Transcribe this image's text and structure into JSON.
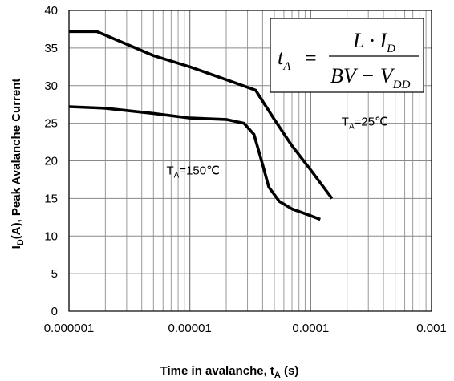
{
  "chart_data": {
    "type": "line",
    "xscale": "log",
    "xlim": [
      1e-06,
      0.001
    ],
    "ylim": [
      0,
      40
    ],
    "grid": true,
    "xlabel": {
      "main": "Time in avalanche, t",
      "sub": "A",
      "unit": " (s)"
    },
    "ylabel": {
      "main": "I",
      "sub": "D",
      "rest": "(A), Peak Avalanche Current"
    },
    "x_ticks": [
      {
        "value": 1e-06,
        "label": "0.000001"
      },
      {
        "value": 1e-05,
        "label": "0.00001"
      },
      {
        "value": 0.0001,
        "label": "0.0001"
      },
      {
        "value": 0.001,
        "label": "0.001"
      }
    ],
    "y_ticks": [
      {
        "value": 0,
        "label": "0"
      },
      {
        "value": 5,
        "label": "5"
      },
      {
        "value": 10,
        "label": "10"
      },
      {
        "value": 15,
        "label": "15"
      },
      {
        "value": 20,
        "label": "20"
      },
      {
        "value": 25,
        "label": "25"
      },
      {
        "value": 30,
        "label": "30"
      },
      {
        "value": 35,
        "label": "35"
      },
      {
        "value": 40,
        "label": "40"
      }
    ],
    "series": [
      {
        "label_main": "T",
        "label_sub": "A",
        "label_rest": "=25℃",
        "label_at": {
          "x": 0.00018,
          "y": 24.7
        },
        "points": [
          {
            "x": 1e-06,
            "y": 37.2
          },
          {
            "x": 1.7e-06,
            "y": 37.2
          },
          {
            "x": 5e-06,
            "y": 34.0
          },
          {
            "x": 1e-05,
            "y": 32.5
          },
          {
            "x": 2e-05,
            "y": 30.8
          },
          {
            "x": 3.5e-05,
            "y": 29.4
          },
          {
            "x": 5e-05,
            "y": 25.5
          },
          {
            "x": 7e-05,
            "y": 22.0
          },
          {
            "x": 0.0001,
            "y": 18.8
          },
          {
            "x": 0.00015,
            "y": 15.0
          }
        ]
      },
      {
        "label_main": "T",
        "label_sub": "A",
        "label_rest": "=150℃",
        "label_at": {
          "x": 6.4e-06,
          "y": 18.2
        },
        "points": [
          {
            "x": 1e-06,
            "y": 27.2
          },
          {
            "x": 2e-06,
            "y": 27.0
          },
          {
            "x": 5e-06,
            "y": 26.3
          },
          {
            "x": 1e-05,
            "y": 25.7
          },
          {
            "x": 2e-05,
            "y": 25.5
          },
          {
            "x": 2.8e-05,
            "y": 25.0
          },
          {
            "x": 3.4e-05,
            "y": 23.5
          },
          {
            "x": 4e-05,
            "y": 19.5
          },
          {
            "x": 4.5e-05,
            "y": 16.5
          },
          {
            "x": 5.5e-05,
            "y": 14.6
          },
          {
            "x": 7e-05,
            "y": 13.6
          },
          {
            "x": 0.0001,
            "y": 12.7
          },
          {
            "x": 0.00012,
            "y": 12.2
          }
        ]
      }
    ],
    "formula": {
      "lhs_main": "t",
      "lhs_sub": "A",
      "equals": "=",
      "num_main": "L · I",
      "num_sub": "D",
      "den_main": "BV − V",
      "den_sub": "DD"
    }
  }
}
